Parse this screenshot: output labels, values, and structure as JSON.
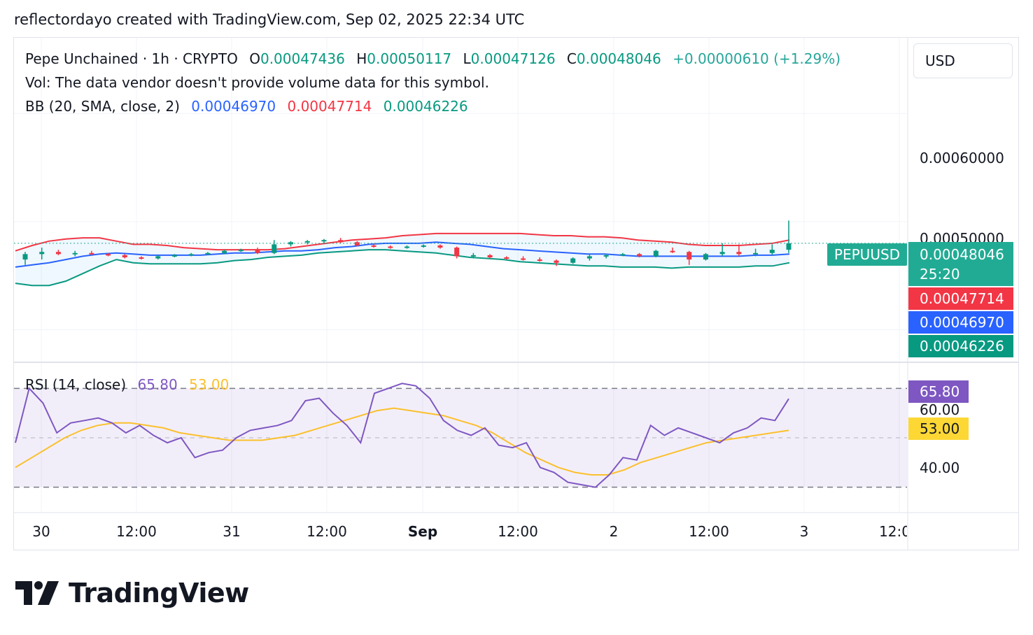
{
  "header": {
    "caption": "reflectordayo created with TradingView.com, Sep 02, 2025 22:34 UTC"
  },
  "symbol": {
    "name": "Pepe Unchained · 1h · CRYPTO",
    "ticker": "PEPUUSD",
    "currency": "USD"
  },
  "ohlc": {
    "o_label": "O",
    "o_value": "0.00047436",
    "h_label": "H",
    "h_value": "0.00050117",
    "l_label": "L",
    "l_value": "0.00047126",
    "c_label": "C",
    "c_value": "0.00048046",
    "change": "+0.00000610 (+1.29%)"
  },
  "volume_note": "Vol: The data vendor doesn't provide volume data for this symbol.",
  "bb_legend": {
    "label": "BB (20, SMA, close, 2)",
    "basis": "0.00046970",
    "upper": "0.00047714",
    "lower": "0.00046226"
  },
  "rsi_legend": {
    "label": "RSI (14, close)",
    "rsi": "65.80",
    "ma": "53.00"
  },
  "price_axis": {
    "ticks": [
      "0.00060000",
      "0.00050000"
    ]
  },
  "price_tags": {
    "last": "0.00048046",
    "countdown": "25:20",
    "upper": "0.00047714",
    "basis": "0.00046970",
    "lower": "0.00046226"
  },
  "rsi_axis": {
    "ticks": [
      "60.00",
      "40.00"
    ],
    "rsi_tag": "65.80",
    "ma_tag": "53.00"
  },
  "time_axis": [
    {
      "label": "30",
      "bold": false
    },
    {
      "label": "12:00",
      "bold": false
    },
    {
      "label": "31",
      "bold": false
    },
    {
      "label": "12:00",
      "bold": false
    },
    {
      "label": "Sep",
      "bold": true
    },
    {
      "label": "12:00",
      "bold": false
    },
    {
      "label": "2",
      "bold": false
    },
    {
      "label": "12:00",
      "bold": false
    },
    {
      "label": "3",
      "bold": false
    },
    {
      "label": "12:00",
      "bold": false
    }
  ],
  "brand": {
    "name": "TradingView"
  },
  "colors": {
    "up": "#089981",
    "down": "#f23645",
    "basis": "#2962ff",
    "upper": "#f23645",
    "lower": "#089981",
    "rsi": "#7e57c2",
    "rsi_ma": "#fbc02d",
    "last_tag": "#22ab94"
  },
  "chart_data": [
    {
      "type": "line",
      "title": "Pepe Unchained · 1h · CRYPTO",
      "x_start": "Aug 29 19:00",
      "interval": "1h",
      "ylim": [
        0.00037,
        0.00067
      ],
      "series": [
        {
          "name": "Bollinger upper",
          "values": [
            0.000473,
            0.000478,
            0.000482,
            0.000484,
            0.000485,
            0.000485,
            0.000482,
            0.000479,
            0.000479,
            0.000478,
            0.000476,
            0.000475,
            0.000474,
            0.000474,
            0.000474,
            0.000474,
            0.000475,
            0.000477,
            0.000479,
            0.000481,
            0.000483,
            0.000484,
            0.000485,
            0.000487,
            0.000488,
            0.000489,
            0.000489,
            0.000489,
            0.000489,
            0.000489,
            0.000489,
            0.000488,
            0.000487,
            0.000487,
            0.000486,
            0.000486,
            0.000485,
            0.000483,
            0.000482,
            0.000481,
            0.000479,
            0.000478,
            0.000478,
            0.000478,
            0.000479,
            0.00048,
            0.000483
          ]
        },
        {
          "name": "Bollinger basis",
          "values": [
            0.000458,
            0.00046,
            0.000462,
            0.000465,
            0.000468,
            0.00047,
            0.000471,
            0.00047,
            0.000469,
            0.000469,
            0.000469,
            0.000469,
            0.00047,
            0.000471,
            0.000471,
            0.000472,
            0.000473,
            0.000473,
            0.000474,
            0.000476,
            0.000477,
            0.000479,
            0.00048,
            0.00048,
            0.00048,
            0.000481,
            0.00048,
            0.000479,
            0.000477,
            0.000475,
            0.000474,
            0.000473,
            0.000472,
            0.000471,
            0.00047,
            0.00047,
            0.000469,
            0.000468,
            0.000468,
            0.000468,
            0.000468,
            0.000468,
            0.000468,
            0.000468,
            0.000469,
            0.000469,
            0.00047
          ]
        },
        {
          "name": "Bollinger lower",
          "values": [
            0.000443,
            0.000441,
            0.000441,
            0.000445,
            0.000452,
            0.000459,
            0.000465,
            0.000462,
            0.000461,
            0.000461,
            0.000461,
            0.000461,
            0.000462,
            0.000464,
            0.000465,
            0.000467,
            0.000468,
            0.000469,
            0.000471,
            0.000472,
            0.000473,
            0.000474,
            0.000474,
            0.000473,
            0.000472,
            0.000471,
            0.000469,
            0.000467,
            0.000466,
            0.000465,
            0.000463,
            0.000462,
            0.000461,
            0.00046,
            0.000459,
            0.000459,
            0.000458,
            0.000458,
            0.000458,
            0.000457,
            0.000458,
            0.000458,
            0.000458,
            0.000458,
            0.000459,
            0.000459,
            0.000462
          ]
        }
      ],
      "candles": [
        {
          "o": 0.000465,
          "h": 0.000472,
          "l": 0.00046,
          "c": 0.00047
        },
        {
          "o": 0.00047,
          "h": 0.000476,
          "l": 0.000465,
          "c": 0.000472
        },
        {
          "o": 0.000472,
          "h": 0.000474,
          "l": 0.000469,
          "c": 0.00047
        },
        {
          "o": 0.00047,
          "h": 0.000473,
          "l": 0.000468,
          "c": 0.000471
        },
        {
          "o": 0.000471,
          "h": 0.000473,
          "l": 0.000469,
          "c": 0.00047
        },
        {
          "o": 0.00047,
          "h": 0.000471,
          "l": 0.000468,
          "c": 0.000469
        },
        {
          "o": 0.000469,
          "h": 0.00047,
          "l": 0.000466,
          "c": 0.000467
        },
        {
          "o": 0.000467,
          "h": 0.000468,
          "l": 0.000465,
          "c": 0.000466
        },
        {
          "o": 0.000466,
          "h": 0.000469,
          "l": 0.000465,
          "c": 0.000468
        },
        {
          "o": 0.000468,
          "h": 0.00047,
          "l": 0.000467,
          "c": 0.000469
        },
        {
          "o": 0.000469,
          "h": 0.000471,
          "l": 0.000468,
          "c": 0.00047
        },
        {
          "o": 0.00047,
          "h": 0.000472,
          "l": 0.000469,
          "c": 0.000471
        },
        {
          "o": 0.000471,
          "h": 0.000474,
          "l": 0.00047,
          "c": 0.000473
        },
        {
          "o": 0.000473,
          "h": 0.000475,
          "l": 0.000472,
          "c": 0.000474
        },
        {
          "o": 0.000474,
          "h": 0.000476,
          "l": 0.00047,
          "c": 0.000471
        },
        {
          "o": 0.000471,
          "h": 0.000483,
          "l": 0.00047,
          "c": 0.000479
        },
        {
          "o": 0.000479,
          "h": 0.000482,
          "l": 0.000477,
          "c": 0.000481
        },
        {
          "o": 0.000481,
          "h": 0.000483,
          "l": 0.000479,
          "c": 0.000482
        },
        {
          "o": 0.000482,
          "h": 0.000484,
          "l": 0.00048,
          "c": 0.000483
        },
        {
          "o": 0.000483,
          "h": 0.000485,
          "l": 0.00048,
          "c": 0.000481
        },
        {
          "o": 0.000481,
          "h": 0.000482,
          "l": 0.000477,
          "c": 0.000478
        },
        {
          "o": 0.000478,
          "h": 0.00048,
          "l": 0.000476,
          "c": 0.000477
        },
        {
          "o": 0.000477,
          "h": 0.000478,
          "l": 0.000475,
          "c": 0.000476
        },
        {
          "o": 0.000476,
          "h": 0.000478,
          "l": 0.000475,
          "c": 0.000477
        },
        {
          "o": 0.000477,
          "h": 0.000479,
          "l": 0.000476,
          "c": 0.000478
        },
        {
          "o": 0.000478,
          "h": 0.000479,
          "l": 0.000475,
          "c": 0.000476
        },
        {
          "o": 0.000476,
          "h": 0.000477,
          "l": 0.000466,
          "c": 0.000468
        },
        {
          "o": 0.000468,
          "h": 0.000471,
          "l": 0.000466,
          "c": 0.000469
        },
        {
          "o": 0.000469,
          "h": 0.00047,
          "l": 0.000466,
          "c": 0.000467
        },
        {
          "o": 0.000467,
          "h": 0.000468,
          "l": 0.000465,
          "c": 0.000466
        },
        {
          "o": 0.000466,
          "h": 0.000468,
          "l": 0.000464,
          "c": 0.000465
        },
        {
          "o": 0.000465,
          "h": 0.000467,
          "l": 0.000463,
          "c": 0.000464
        },
        {
          "o": 0.000464,
          "h": 0.000465,
          "l": 0.000459,
          "c": 0.000462
        },
        {
          "o": 0.000462,
          "h": 0.000467,
          "l": 0.000461,
          "c": 0.000466
        },
        {
          "o": 0.000466,
          "h": 0.00047,
          "l": 0.000464,
          "c": 0.000468
        },
        {
          "o": 0.000468,
          "h": 0.00047,
          "l": 0.000466,
          "c": 0.000469
        },
        {
          "o": 0.000469,
          "h": 0.000471,
          "l": 0.000468,
          "c": 0.00047
        },
        {
          "o": 0.00047,
          "h": 0.000471,
          "l": 0.000467,
          "c": 0.000468
        },
        {
          "o": 0.000468,
          "h": 0.000474,
          "l": 0.000467,
          "c": 0.000473
        },
        {
          "o": 0.000473,
          "h": 0.000476,
          "l": 0.000471,
          "c": 0.000472
        },
        {
          "o": 0.000472,
          "h": 0.000473,
          "l": 0.00046,
          "c": 0.000465
        },
        {
          "o": 0.000465,
          "h": 0.000471,
          "l": 0.000464,
          "c": 0.00047
        },
        {
          "o": 0.00047,
          "h": 0.00048,
          "l": 0.000468,
          "c": 0.000472
        },
        {
          "o": 0.000472,
          "h": 0.000479,
          "l": 0.000468,
          "c": 0.00047
        },
        {
          "o": 0.00047,
          "h": 0.000475,
          "l": 0.000468,
          "c": 0.000471
        },
        {
          "o": 0.000471,
          "h": 0.000479,
          "l": 0.000469,
          "c": 0.000474
        },
        {
          "o": 0.000474,
          "h": 0.000501,
          "l": 0.000471,
          "c": 0.00048
        }
      ]
    },
    {
      "type": "line",
      "title": "RSI (14, close)",
      "ylim": [
        20,
        80
      ],
      "bands": [
        70,
        30
      ],
      "series": [
        {
          "name": "RSI",
          "values": [
            48,
            70,
            64,
            52,
            56,
            57,
            58,
            56,
            52,
            55,
            51,
            48,
            50,
            42,
            44,
            45,
            50,
            53,
            54,
            55,
            57,
            65,
            66,
            60,
            55,
            48,
            68,
            70,
            72,
            71,
            66,
            57,
            53,
            51,
            54,
            47,
            46,
            48,
            38,
            36,
            32,
            31,
            30,
            35,
            42,
            41,
            55,
            51,
            54,
            52,
            50,
            48,
            52,
            54,
            58,
            57,
            65.8
          ]
        },
        {
          "name": "RSI-based MA",
          "values": [
            38,
            42,
            46,
            50,
            53,
            55,
            56,
            56,
            55,
            54,
            52,
            51,
            50,
            49,
            49,
            49,
            50,
            51,
            53,
            55,
            57,
            59,
            61,
            62,
            61,
            60,
            59,
            57,
            55,
            52,
            48,
            44,
            41,
            38,
            36,
            35,
            35,
            37,
            40,
            42,
            44,
            46,
            48,
            49,
            50,
            51,
            52,
            53
          ]
        }
      ]
    }
  ]
}
